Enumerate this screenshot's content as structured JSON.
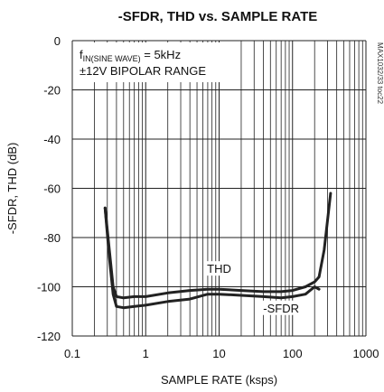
{
  "chart_data": {
    "type": "line",
    "title": "-SFDR, THD vs. SAMPLE RATE",
    "xlabel": "SAMPLE RATE (ksps)",
    "ylabel": "-SFDR, THD (dB)",
    "xscale": "log",
    "xlim": [
      0.1,
      1000
    ],
    "ylim": [
      -120,
      0
    ],
    "x_tick_labels": [
      "0.1",
      "1",
      "10",
      "100",
      "1000"
    ],
    "x_ticks": [
      0.1,
      1,
      10,
      100,
      1000
    ],
    "y_tick_labels": [
      "0",
      "-20",
      "-40",
      "-60",
      "-80",
      "-100",
      "-120"
    ],
    "y_ticks": [
      0,
      -20,
      -40,
      -60,
      -80,
      -100,
      -120
    ],
    "grid": true,
    "annotation_line1": "= 5kHz",
    "annotation_line1_prefix": "f",
    "annotation_line1_subscript": "IN(SINE WAVE)",
    "annotation_line2": "±12V BIPOLAR RANGE",
    "part_number": "MAX1032/33 toc22",
    "series": [
      {
        "name": "THD",
        "x": [
          0.28,
          0.32,
          0.36,
          0.4,
          0.5,
          0.7,
          1,
          2,
          4,
          7,
          10,
          20,
          40,
          70,
          100,
          150,
          200,
          230,
          270,
          330
        ],
        "y": [
          -68,
          -85,
          -100,
          -104,
          -104.5,
          -104,
          -104,
          -102.5,
          -101.5,
          -101,
          -101,
          -101.5,
          -102,
          -102,
          -101.5,
          -100,
          -98,
          -96,
          -85,
          -62
        ]
      },
      {
        "name": "-SFDR",
        "x": [
          0.28,
          0.32,
          0.36,
          0.4,
          0.5,
          0.7,
          1,
          2,
          4,
          7,
          10,
          20,
          40,
          70,
          100,
          150,
          200,
          230
        ],
        "y": [
          -68,
          -88,
          -103,
          -108,
          -108.5,
          -108,
          -107.5,
          -106,
          -105,
          -103,
          -103,
          -103.5,
          -104,
          -104.5,
          -104,
          -103,
          -100,
          -101
        ]
      }
    ],
    "series_labels": [
      {
        "text": "THD",
        "x": 10,
        "y": -94
      },
      {
        "text": "-SFDR",
        "x": 70,
        "y": -110
      }
    ]
  }
}
